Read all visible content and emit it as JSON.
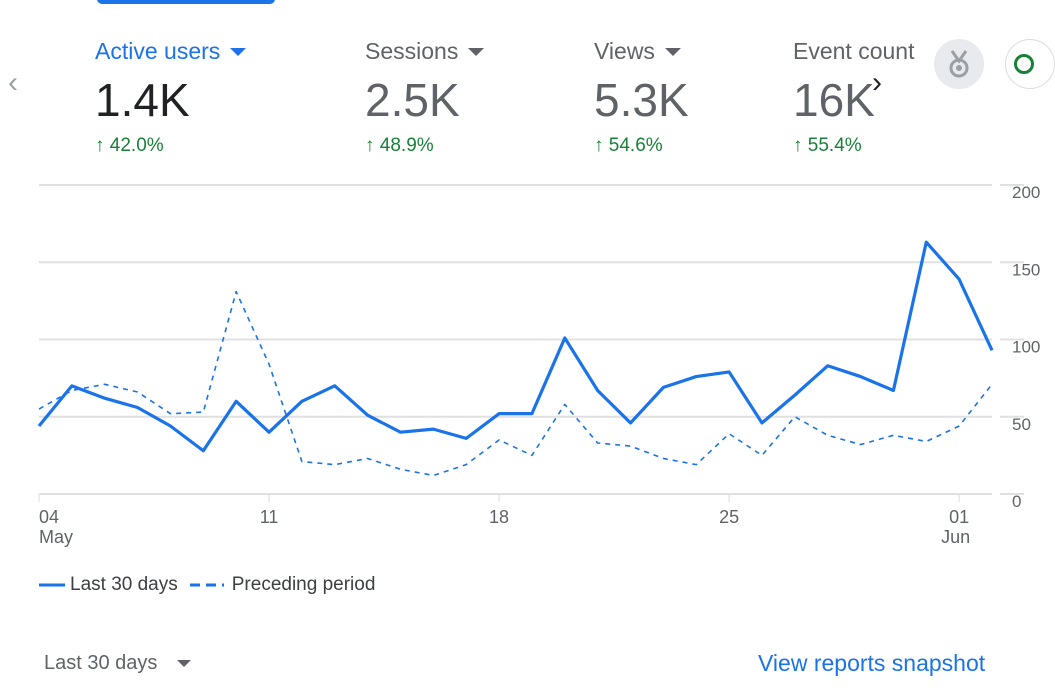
{
  "metrics": [
    {
      "label": "Active users",
      "value": "1.4K",
      "change": "42.0%"
    },
    {
      "label": "Sessions",
      "value": "2.5K",
      "change": "48.9%"
    },
    {
      "label": "Views",
      "value": "5.3K",
      "change": "54.6%"
    },
    {
      "label": "Event count",
      "value": "16K",
      "change": "55.4%"
    }
  ],
  "nav": {
    "prev": "‹",
    "next": "›"
  },
  "icons": {
    "badge": "medal-icon",
    "insights": "insights-icon"
  },
  "colors": {
    "accent": "#1a73e8",
    "positive": "#188038"
  },
  "chart_data": {
    "type": "line",
    "x": [
      "May 04",
      "May 05",
      "May 06",
      "May 07",
      "May 08",
      "May 09",
      "May 10",
      "May 11",
      "May 12",
      "May 13",
      "May 14",
      "May 15",
      "May 16",
      "May 17",
      "May 18",
      "May 19",
      "May 20",
      "May 21",
      "May 22",
      "May 23",
      "May 24",
      "May 25",
      "May 26",
      "May 27",
      "May 28",
      "May 29",
      "May 30",
      "May 31",
      "Jun 01",
      "Jun 02"
    ],
    "x_ticks": [
      {
        "day": "04",
        "month": "May",
        "index": 0
      },
      {
        "day": "11",
        "month": "",
        "index": 7
      },
      {
        "day": "18",
        "month": "",
        "index": 14
      },
      {
        "day": "25",
        "month": "",
        "index": 21
      },
      {
        "day": "01",
        "month": "Jun",
        "index": 28
      }
    ],
    "series": [
      {
        "name": "Last 30 days",
        "style": "solid",
        "values": [
          44,
          70,
          62,
          56,
          44,
          28,
          60,
          40,
          60,
          70,
          51,
          40,
          42,
          36,
          52,
          52,
          101,
          67,
          46,
          69,
          76,
          79,
          46,
          64,
          83,
          76,
          67,
          163,
          139,
          93
        ]
      },
      {
        "name": "Preceding period",
        "style": "dashed",
        "values": [
          55,
          67,
          71,
          66,
          52,
          53,
          131,
          84,
          21,
          19,
          23,
          16,
          12,
          19,
          35,
          25,
          58,
          33,
          31,
          23,
          19,
          39,
          25,
          50,
          38,
          32,
          38,
          34,
          44,
          71
        ]
      }
    ],
    "ylim": [
      0,
      200
    ],
    "y_ticks": [
      "0",
      "50",
      "100",
      "150",
      "200"
    ],
    "grid": true,
    "legend_position": "bottom-left"
  },
  "footer": {
    "range": "Last 30 days",
    "link": "View reports snapshot"
  }
}
